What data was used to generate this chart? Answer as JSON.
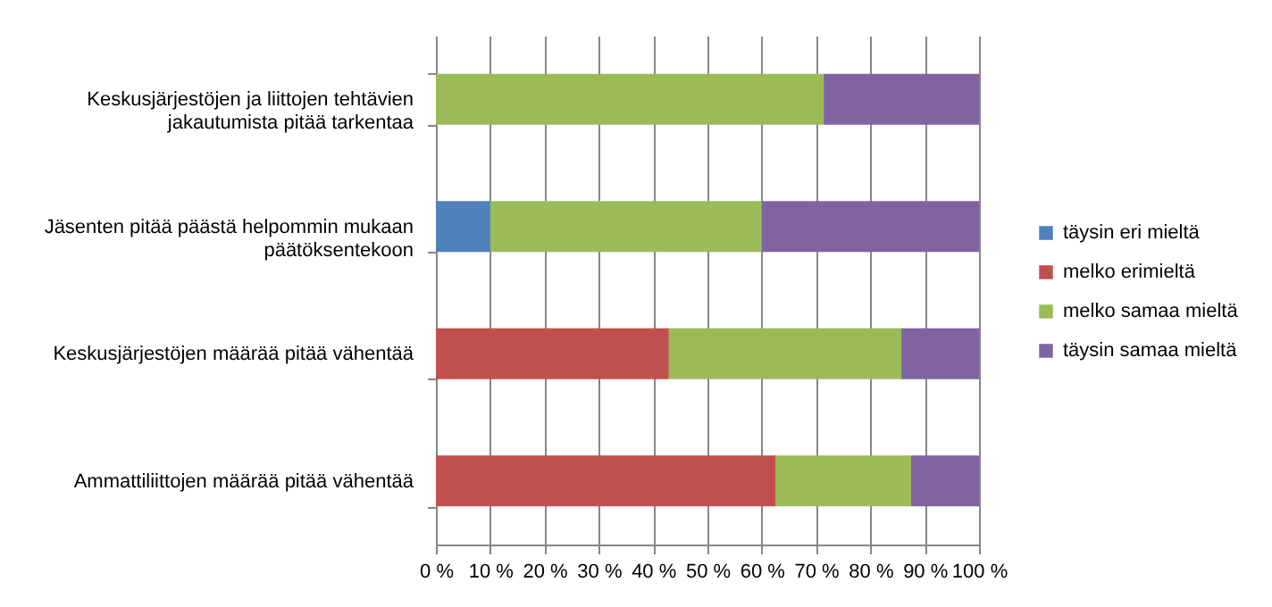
{
  "chart_data": {
    "type": "bar",
    "orientation": "horizontal",
    "stacked": true,
    "categories": [
      "Keskusjärjestöjen ja liittojen tehtävien jakautumista pitää tarkentaa",
      "Jäsenten pitää päästä helpommin mukaan päätöksentekoon",
      "Keskusjärjestöjen määrää pitää vähentää",
      "Ammattiliittojen määrää pitää vähentää"
    ],
    "series": [
      {
        "name": "täysin eri mieltä",
        "color": "#4f81bd",
        "values": [
          null,
          10,
          null,
          null
        ]
      },
      {
        "name": "melko erimieltä",
        "color": "#c0504d",
        "values": [
          null,
          null,
          42.9,
          62.5
        ]
      },
      {
        "name": "melko samaa mieltä",
        "color": "#9bbb59",
        "values": [
          71.4,
          50,
          42.8,
          25
        ]
      },
      {
        "name": "täysin samaa mieltä",
        "color": "#8064a2",
        "values": [
          28.6,
          40,
          14.3,
          12.5
        ]
      }
    ],
    "xlim": [
      0,
      100
    ],
    "xticks": [
      {
        "value": 0,
        "label": "0 %"
      },
      {
        "value": 10,
        "label": "10 %"
      },
      {
        "value": 20,
        "label": "20 %"
      },
      {
        "value": 30,
        "label": "30 %"
      },
      {
        "value": 40,
        "label": "40 %"
      },
      {
        "value": 50,
        "label": "50 %"
      },
      {
        "value": 60,
        "label": "60 %"
      },
      {
        "value": 70,
        "label": "70 %"
      },
      {
        "value": 80,
        "label": "80 %"
      },
      {
        "value": 90,
        "label": "90 %"
      },
      {
        "value": 100,
        "label": "100 %"
      }
    ],
    "grid": "x",
    "legend": "right"
  }
}
